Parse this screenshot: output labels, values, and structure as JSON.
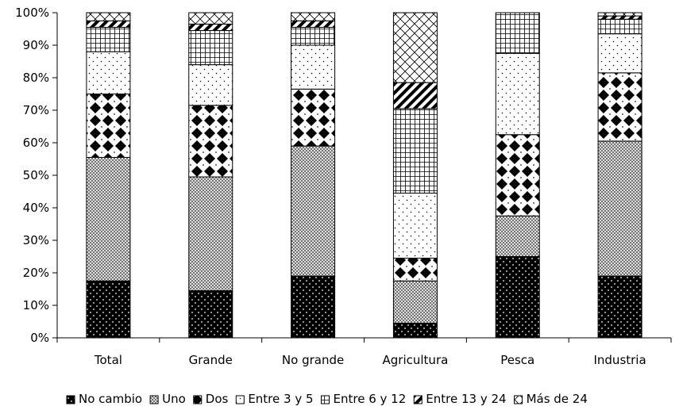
{
  "chart_data": {
    "type": "bar",
    "stacked": true,
    "percent": true,
    "title": "",
    "xlabel": "",
    "ylabel": "",
    "ylim": [
      0,
      100
    ],
    "yticks": [
      0,
      10,
      20,
      30,
      40,
      50,
      60,
      70,
      80,
      90,
      100
    ],
    "ytick_labels": [
      "0%",
      "10%",
      "20%",
      "30%",
      "40%",
      "50%",
      "60%",
      "70%",
      "80%",
      "90%",
      "100%"
    ],
    "grid": false,
    "legend_position": "bottom",
    "categories": [
      "Total",
      "Grande",
      "No grande",
      "Agricultura",
      "Pesca",
      "Industria"
    ],
    "series": [
      {
        "name": "No cambio",
        "pattern": "dots-dark",
        "values": [
          17.5,
          14.5,
          19,
          4.5,
          25,
          19
        ]
      },
      {
        "name": "Uno",
        "pattern": "crosshatch-fine",
        "values": [
          38,
          35,
          40,
          13,
          12.5,
          41.5
        ]
      },
      {
        "name": "Dos",
        "pattern": "diamonds",
        "values": [
          19.5,
          22,
          17.5,
          7,
          25,
          21
        ]
      },
      {
        "name": "Entre 3 y 5",
        "pattern": "dots-light",
        "values": [
          13,
          12.5,
          13.5,
          20,
          25,
          12
        ]
      },
      {
        "name": "Entre 6 y 12",
        "pattern": "grid",
        "values": [
          7.5,
          10.5,
          5.5,
          26,
          12.5,
          4.5
        ]
      },
      {
        "name": "Entre 13 y 24",
        "pattern": "diagonal",
        "values": [
          2,
          2,
          2,
          8,
          0,
          1
        ]
      },
      {
        "name": "Más de 24",
        "pattern": "crosshatch-coarse",
        "values": [
          2.5,
          3.5,
          2.5,
          21.5,
          0,
          1
        ]
      }
    ]
  }
}
